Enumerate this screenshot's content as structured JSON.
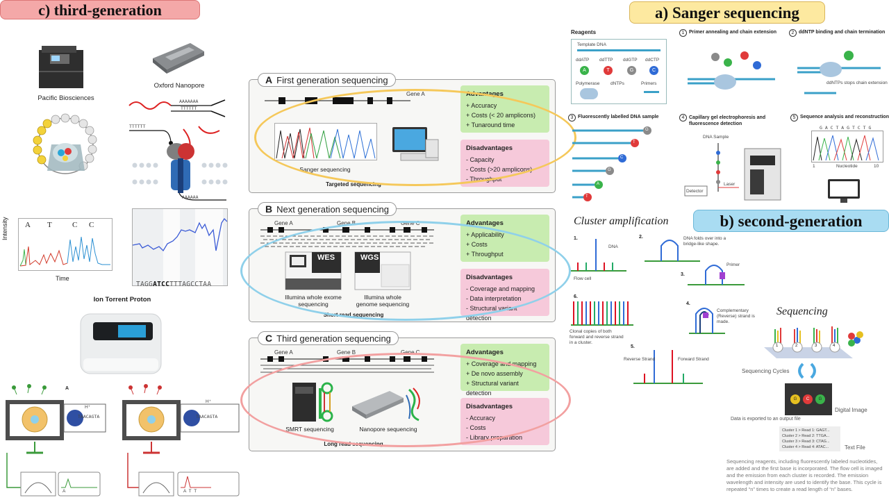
{
  "badges": {
    "third": "c) third-generation",
    "sanger": "a) Sanger sequencing",
    "second": "b) second-generation"
  },
  "third_gen": {
    "pacbio": "Pacific Biosciences",
    "nanopore": "Oxford Nanopore",
    "ion": "Ion Torrent Proton",
    "intensity": "Intensity",
    "time": "Time",
    "trace_bases": [
      "A",
      "T",
      "C",
      "C"
    ],
    "poly_a": "AAAAAAA",
    "poly_t": "TTTTTT",
    "poly_a_bottom": "AAAAAA",
    "poly_t_left": "TTTTTT",
    "read_seq_prefix": "TAGG",
    "read_seq_bold": "ATCC",
    "read_seq_suffix": "TTTAGCCTAA",
    "ion_panel_a": "A",
    "h_plus": "H⁺",
    "ion_meter_left": "A",
    "ion_meter_right": "A T T",
    "ion_seq_left": "TAACAGTA",
    "ion_seq_right": "TAACAGTA"
  },
  "panels": {
    "first": {
      "letter": "A",
      "title": "First generation sequencing",
      "gene": "Gene A",
      "adv_title": "Advantages",
      "adv": [
        "+ Accuracy",
        "+ Costs (< 20 amplicons)",
        "+ Tunaround time"
      ],
      "dis_title": "Disadvantages",
      "dis": [
        "- Capacity",
        "- Costs (>20 amplicons)",
        "- Throughput"
      ],
      "caption1": "Sanger sequencing",
      "caption2": "Targeted sequencing"
    },
    "next": {
      "letter": "B",
      "title": "Next generation sequencing",
      "genes": [
        "Gene A",
        "Gene B",
        "Gene C"
      ],
      "adv_title": "Advantages",
      "adv": [
        "+ Applicability",
        "+ Costs",
        "+ Throughput"
      ],
      "dis_title": "Disadvantages",
      "dis": [
        "- Coverage and mapping",
        "- Data interpretation",
        "- Structural variant detection"
      ],
      "wes": "WES",
      "wgs": "WGS",
      "cap_wes": "Illumina whole exome sequencing",
      "cap_wgs": "Illumina whole genome sequencing",
      "caption_bottom": "Short read sequencing"
    },
    "third": {
      "letter": "C",
      "title": "Third generation sequencing",
      "genes": [
        "Gene A",
        "Gene B",
        "Gene C"
      ],
      "adv_title": "Advantages",
      "adv": [
        "+ Coverage and mapping",
        "+ De novo assembly",
        "+ Structural variant detection"
      ],
      "dis_title": "Disadvantages",
      "dis": [
        "- Accuracy",
        "- Costs",
        "- Library preparation"
      ],
      "cap_smrt": "SMRT sequencing",
      "cap_nano": "Nanopore sequencing",
      "caption_bottom": "Long read sequencing"
    }
  },
  "sanger": {
    "reagents": "Reagents",
    "template": "Template DNA",
    "nucs": [
      "ddATP",
      "ddTTP",
      "ddGTP",
      "ddCTP"
    ],
    "nuc_letters": [
      "A",
      "T",
      "G",
      "C"
    ],
    "polymerase": "Polymerase",
    "dntps": "dNTPs",
    "primers": "Primers",
    "step1": "Primer annealing and chain extension",
    "step2": "ddNTP binding and chain termination",
    "step2_note": "ddNTPs stops chain extension",
    "step3": "Fluorescently labelled DNA sample",
    "step4": "Capillary gel electrophoresis and fluorescence detection",
    "step4_sample": "DNA Sample",
    "laser": "Laser",
    "detector": "Detector",
    "step5": "Sequence analysis and reconstruction",
    "seq": "G A C T A G T C T G",
    "axis": [
      "1",
      "Nucleotide",
      "10"
    ],
    "frag_letters": [
      "G",
      "T",
      "C",
      "G",
      "A",
      "T"
    ],
    "step_nums": [
      "1",
      "2",
      "3",
      "4",
      "5"
    ]
  },
  "second": {
    "cluster": "Cluster amplification",
    "sequencing": "Sequencing",
    "dna": "DNA",
    "bridge_note": "DNA folds over into a bridge-like shape.",
    "primer": "Primer",
    "flow_cell": "Flow cell",
    "complementary": "Complementary (Reverse) strand is made.",
    "clonal": "Clonal copies of both forward and reverse strand in a cluster.",
    "reverse": "Reverse Strand",
    "forward": "Forward Strand",
    "cycles": "Sequencing Cycles",
    "digital": "Digital Image",
    "exported": "Data is exported to an output file",
    "clusters": [
      "Cluster 1 > Read 1: GAGT...",
      "Cluster 2 > Read 2: TTGA...",
      "Cluster 3 > Read 3: CTAG...",
      "Cluster 4 > Read 4: ATAC..."
    ],
    "text_file": "Text File",
    "paragraph": "Sequencing reagents, including fluorescently labeled nucleotides, are added and the first base is incorporated. The flow cell is imaged and the emission from each cluster is recorded. The emission wavelength and intensity are used to identify the base. This cycle is repeated “n” times to create a read length of “n” bases.",
    "steps": [
      "1.",
      "2.",
      "3.",
      "4.",
      "5.",
      "6."
    ],
    "cluster_nums": [
      "1",
      "2",
      "3",
      "4"
    ],
    "image_letters": [
      "G",
      "C",
      "G"
    ]
  },
  "colors": {
    "badge_red": "#f4a8a8",
    "badge_yellow": "#fde9a0",
    "badge_blue": "#a9dcf2",
    "oval_yellow": "#f5c85a",
    "oval_blue": "#8fd0ea",
    "oval_red": "#f2a0a0",
    "adv_green": "#c8ecb0",
    "dis_pink": "#f6c9da"
  }
}
